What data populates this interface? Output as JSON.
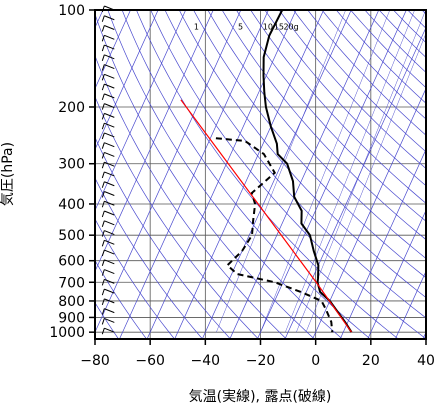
{
  "chart_data": {
    "type": "line",
    "title": "",
    "xlabel": "気温(実線), 露点(破線)",
    "ylabel": "気圧(hPa)",
    "xlim": [
      -80,
      40
    ],
    "ylim": [
      1050,
      100
    ],
    "y_scale": "log",
    "x_ticks": [
      -80,
      -60,
      -40,
      -20,
      0,
      20,
      40
    ],
    "x_tick_labels": [
      "−80",
      "−60",
      "−40",
      "−20",
      "0",
      "20",
      "40"
    ],
    "y_ticks": [
      100,
      200,
      300,
      400,
      500,
      600,
      700,
      800,
      900,
      1000
    ],
    "y_tick_labels": [
      "100",
      "200",
      "300",
      "400",
      "500",
      "600",
      "700",
      "800",
      "900",
      "1000"
    ],
    "mixing_ratio_labels": [
      {
        "text": "1",
        "T": -42,
        "p": 115
      },
      {
        "text": "5",
        "T": -26,
        "p": 115
      },
      {
        "text": "10",
        "T": -17,
        "p": 115
      },
      {
        "text": "15",
        "T": -13,
        "p": 115
      },
      {
        "text": "20g",
        "T": -9.5,
        "p": 115
      }
    ],
    "series": [
      {
        "role": "temperature",
        "style": "solid",
        "color": "#000000",
        "points": [
          [
            -65,
            100
          ],
          [
            -65.5,
            120
          ],
          [
            -64,
            140
          ],
          [
            -61,
            160
          ],
          [
            -58,
            180
          ],
          [
            -55,
            200
          ],
          [
            -50,
            230
          ],
          [
            -45,
            260
          ],
          [
            -43,
            280
          ],
          [
            -38,
            300
          ],
          [
            -33,
            340
          ],
          [
            -30,
            380
          ],
          [
            -25,
            420
          ],
          [
            -23,
            460
          ],
          [
            -18,
            500
          ],
          [
            -14,
            560
          ],
          [
            -10,
            620
          ],
          [
            -8,
            680
          ],
          [
            -7.5,
            700
          ],
          [
            -5,
            750
          ],
          [
            0,
            800
          ],
          [
            5,
            870
          ],
          [
            9,
            930
          ],
          [
            13,
            1000
          ]
        ]
      },
      {
        "role": "dewpoint",
        "style": "dashed",
        "color": "#000000",
        "points": [
          [
            -68,
            250
          ],
          [
            -57,
            255
          ],
          [
            -48,
            280
          ],
          [
            -41,
            320
          ],
          [
            -46,
            370
          ],
          [
            -43,
            400
          ],
          [
            -41,
            450
          ],
          [
            -39,
            500
          ],
          [
            -40,
            560
          ],
          [
            -43,
            620
          ],
          [
            -38,
            660
          ],
          [
            -23,
            700
          ],
          [
            -12,
            750
          ],
          [
            -3,
            800
          ],
          [
            0,
            850
          ],
          [
            4,
            930
          ],
          [
            6,
            1000
          ]
        ]
      },
      {
        "role": "parcel",
        "style": "solid",
        "color": "#ff0000",
        "points": [
          [
            -87,
            190
          ],
          [
            -8,
            700
          ],
          [
            13,
            1000
          ]
        ]
      }
    ],
    "wind_barbs": "left-margin column at T = -73"
  }
}
